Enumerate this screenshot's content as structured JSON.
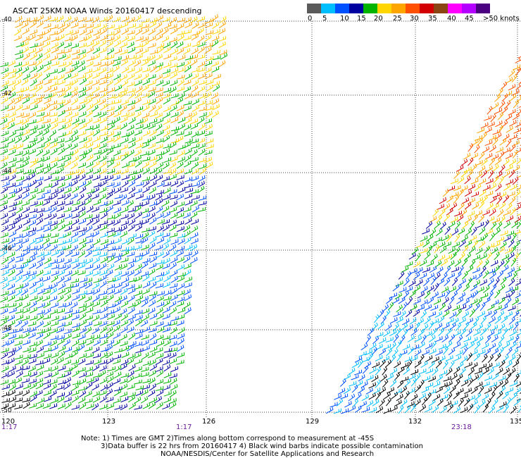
{
  "title": "ASCAT 25KM NOAA Winds 20160417 descending",
  "legend": {
    "colors": [
      "#5a5a5a",
      "#00bfff",
      "#0050ff",
      "#0000a0",
      "#00b400",
      "#ffd500",
      "#ffa500",
      "#ff5000",
      "#d20000",
      "#8b4513",
      "#ff00ff",
      "#b400ff",
      "#4b0082"
    ],
    "labels": [
      "0",
      "5",
      "10",
      "15",
      "20",
      "25",
      "30",
      "35",
      "40",
      "45",
      ">50 knots"
    ]
  },
  "map": {
    "lat_labels": [
      "-40",
      "-42",
      "-44",
      "-46",
      "-48",
      "-50"
    ],
    "lon_labels": [
      "120",
      "123",
      "126",
      "129",
      "132",
      "135"
    ],
    "time_labels": [
      "1:17",
      "1:17",
      "23:18"
    ]
  },
  "notes": [
    "Note: 1) Times are GMT 2)Times along bottom correspond to measurement at -45S",
    "3)Data buffer is 22 hrs from 20160417 4) Black wind barbs indicate possible contamination",
    "NOAA/NESDIS/Center for Satellite Applications and Research"
  ]
}
